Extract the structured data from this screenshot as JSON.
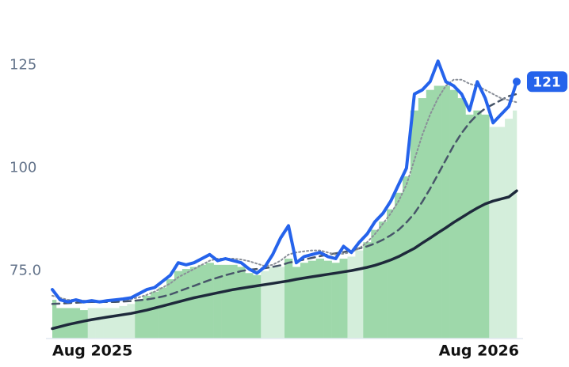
{
  "chart_data": {
    "type": "line",
    "categories": [
      "Aug 2025",
      null,
      null,
      null,
      null,
      null,
      null,
      null,
      null,
      null,
      null,
      null,
      null,
      null,
      null,
      null,
      null,
      null,
      null,
      null,
      null,
      null,
      null,
      null,
      null,
      null,
      null,
      null,
      null,
      null,
      null,
      null,
      null,
      null,
      null,
      null,
      null,
      null,
      null,
      null,
      null,
      null,
      null,
      null,
      null,
      null,
      null,
      null,
      null,
      null,
      null,
      null,
      null,
      null,
      null,
      null,
      null,
      null,
      null,
      "Aug 2026"
    ],
    "ylim": [
      58.6,
      137
    ],
    "yticks": [
      {
        "value": 75,
        "label": "75.0"
      },
      100,
      125
    ],
    "series": [
      {
        "mark": "bar",
        "color": "#9ed8aa",
        "bar_colors": [
          "#9ed8aa",
          "#9ed8aa",
          "#9ed8aa",
          "#9ed8aa",
          "#9ed8aa",
          "#d4eedb",
          "#d4eedb",
          "#d4eedb",
          "#d4eedb",
          "#d4eedb",
          "#d4eedb",
          "#9ed8aa",
          "#9ed8aa",
          "#9ed8aa",
          "#9ed8aa",
          "#9ed8aa",
          "#9ed8aa",
          "#9ed8aa",
          "#9ed8aa",
          "#9ed8aa",
          "#9ed8aa",
          "#9ed8aa",
          "#9ed8aa",
          "#9ed8aa",
          "#9ed8aa",
          "#9ed8aa",
          "#9ed8aa",
          "#d4eedb",
          "#d4eedb",
          "#d4eedb",
          "#9ed8aa",
          "#9ed8aa",
          "#9ed8aa",
          "#9ed8aa",
          "#9ed8aa",
          "#9ed8aa",
          "#9ed8aa",
          "#9ed8aa",
          "#d4eedb",
          "#d4eedb",
          "#9ed8aa",
          "#9ed8aa",
          "#9ed8aa",
          "#9ed8aa",
          "#9ed8aa",
          "#9ed8aa",
          "#9ed8aa",
          "#9ed8aa",
          "#9ed8aa",
          "#9ed8aa",
          "#9ed8aa",
          "#9ed8aa",
          "#9ed8aa",
          "#9ed8aa",
          "#9ed8aa",
          "#9ed8aa",
          "#d4eedb",
          "#d4eedb",
          "#d4eedb",
          "#d4eedb"
        ],
        "values": [
          68,
          66,
          66,
          66,
          65.5,
          66,
          66,
          66,
          66,
          66.5,
          67,
          68,
          69,
          70,
          71,
          73,
          75,
          75.5,
          76,
          76.5,
          77,
          76.5,
          76.5,
          76.5,
          76,
          74.5,
          74,
          75,
          76,
          76,
          78,
          76,
          77,
          77.5,
          78,
          77.5,
          77,
          78,
          78.5,
          80,
          82,
          85,
          87,
          90,
          94,
          98,
          114,
          117,
          119,
          120,
          120,
          119,
          117,
          113,
          114,
          113,
          110,
          110,
          112,
          114
        ]
      },
      {
        "mark": "line",
        "color": "#1e293b",
        "width": 3.5,
        "dash": "none",
        "values": [
          61,
          61.5,
          62,
          62.4,
          62.8,
          63.2,
          63.5,
          63.8,
          64.1,
          64.4,
          64.7,
          65.1,
          65.5,
          66,
          66.5,
          67,
          67.5,
          68,
          68.5,
          68.9,
          69.3,
          69.7,
          70.1,
          70.5,
          70.8,
          71.1,
          71.4,
          71.7,
          72,
          72.3,
          72.6,
          73,
          73.3,
          73.6,
          73.9,
          74.2,
          74.5,
          74.8,
          75.1,
          75.5,
          75.9,
          76.4,
          77,
          77.7,
          78.5,
          79.5,
          80.5,
          81.8,
          83,
          84.3,
          85.5,
          86.8,
          88,
          89.2,
          90.3,
          91.3,
          92,
          92.5,
          93,
          94.5
        ]
      },
      {
        "mark": "line",
        "color": "#475569",
        "width": 2.5,
        "dash": "9 6",
        "values": [
          67,
          67.1,
          67.2,
          67.3,
          67.4,
          67.5,
          67.5,
          67.5,
          67.5,
          67.6,
          67.7,
          67.9,
          68.1,
          68.4,
          68.8,
          69.3,
          70,
          70.7,
          71.4,
          72.1,
          72.8,
          73.4,
          74,
          74.5,
          75,
          75.3,
          75.5,
          75.7,
          76,
          76.4,
          77,
          77.4,
          77.8,
          78.2,
          78.6,
          79,
          79.3,
          79.6,
          80,
          80.5,
          81,
          81.7,
          82.6,
          83.7,
          85,
          86.8,
          89,
          91.8,
          95,
          98.5,
          102,
          105.5,
          108.5,
          111,
          113,
          114.5,
          115.5,
          116.5,
          117.5,
          118
        ]
      },
      {
        "mark": "line",
        "color": "#8a8f98",
        "width": 2,
        "dash": "2 3",
        "values": [
          69,
          68.5,
          68,
          68,
          67.8,
          67.8,
          67.7,
          67.7,
          67.8,
          68,
          68.2,
          68.6,
          69.2,
          70,
          71,
          72,
          73.5,
          74.5,
          75.5,
          76.5,
          77.5,
          78,
          78,
          78,
          77.8,
          77.4,
          76.8,
          76.2,
          76.5,
          77.5,
          79,
          79.5,
          79.8,
          80,
          80,
          79.5,
          79,
          79.2,
          79.6,
          80.5,
          82,
          84,
          86.5,
          89,
          92,
          96,
          102,
          108,
          113,
          117,
          120,
          121.5,
          121.5,
          120.5,
          120,
          119,
          118,
          117,
          116.5,
          116
        ]
      },
      {
        "mark": "line",
        "color": "#2563eb",
        "width": 4,
        "dash": "none",
        "values": [
          70.5,
          68,
          67.5,
          68,
          67.5,
          67.8,
          67.5,
          67.8,
          68,
          68.2,
          68.5,
          69.5,
          70.5,
          71,
          72.5,
          74,
          77,
          76.5,
          77,
          78,
          79,
          77.5,
          78,
          77.5,
          77,
          75.5,
          74.5,
          76,
          79,
          83,
          86,
          77,
          78.5,
          79,
          79.5,
          78.5,
          78,
          81,
          79.5,
          82,
          84,
          87,
          89,
          92,
          96,
          100,
          118,
          119,
          121,
          126,
          121,
          120,
          118,
          114,
          121,
          117,
          111,
          113,
          115,
          121
        ],
        "value_labels": [
          null,
          null,
          null,
          null,
          null,
          null,
          null,
          null,
          null,
          null,
          null,
          null,
          null,
          null,
          null,
          null,
          null,
          null,
          null,
          null,
          null,
          null,
          null,
          null,
          null,
          null,
          null,
          null,
          null,
          null,
          null,
          null,
          null,
          null,
          null,
          null,
          null,
          null,
          null,
          null,
          null,
          null,
          null,
          null,
          null,
          null,
          null,
          null,
          null,
          null,
          null,
          null,
          null,
          null,
          null,
          null,
          null,
          null,
          null,
          "121"
        ]
      }
    ]
  }
}
